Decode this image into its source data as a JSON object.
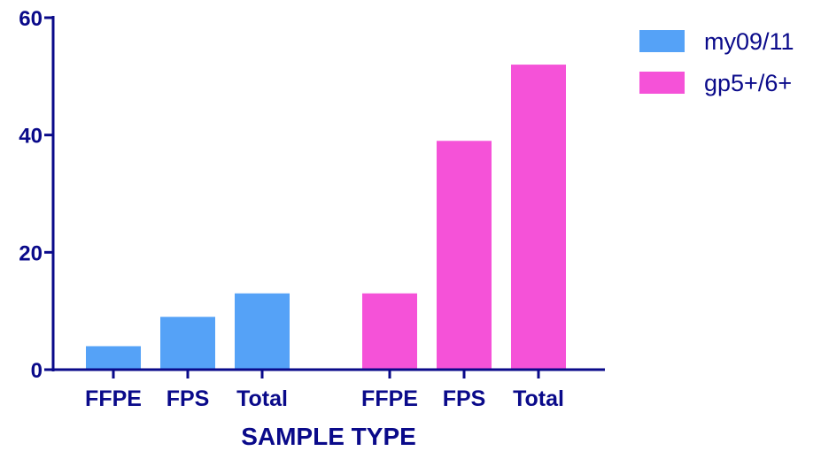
{
  "chart_data": {
    "type": "bar",
    "xlabel": "SAMPLE TYPE",
    "ylabel": "",
    "ylim": [
      0,
      60
    ],
    "yticks": [
      0,
      20,
      40,
      60
    ],
    "grid": false,
    "legend_position": "top-right",
    "groups": [
      {
        "series": "my09/11",
        "categories": [
          "FFPE",
          "FPS",
          "Total"
        ],
        "values": [
          4,
          9,
          13
        ]
      },
      {
        "series": "gp5+/6+",
        "categories": [
          "FFPE",
          "FPS",
          "Total"
        ],
        "values": [
          13,
          39,
          52
        ]
      }
    ],
    "series": [
      {
        "name": "my09/11",
        "color": "#55a2f7"
      },
      {
        "name": "gp5+/6+",
        "color": "#f552d8"
      }
    ],
    "axis_color": "#0a0a8a"
  }
}
